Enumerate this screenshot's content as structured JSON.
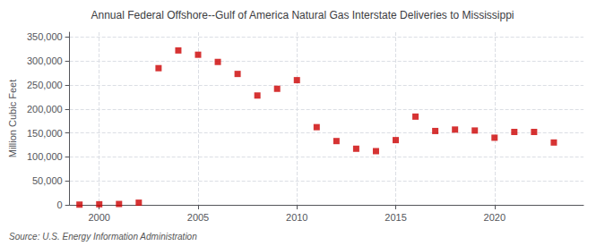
{
  "chart_data": {
    "type": "scatter",
    "title": "Annual Federal Offshore--Gulf of America Natural Gas Interstate Deliveries to Mississippi",
    "ylabel": "Million Cubic Feet",
    "source": "Source: U.S. Energy Information Administration",
    "x": [
      1999,
      2000,
      2001,
      2002,
      2003,
      2004,
      2005,
      2006,
      2007,
      2008,
      2009,
      2010,
      2011,
      2012,
      2013,
      2014,
      2015,
      2016,
      2017,
      2018,
      2019,
      2020,
      2021,
      2022,
      2023
    ],
    "values": [
      500,
      1200,
      1800,
      4500,
      285000,
      322000,
      313000,
      298000,
      273000,
      228000,
      242000,
      260000,
      162000,
      133000,
      117000,
      112000,
      135000,
      184000,
      154000,
      157000,
      155000,
      140000,
      152000,
      152000,
      130000
    ],
    "color": "#cc0000",
    "marker": "square",
    "xlim": [
      1998.5,
      2024.5
    ],
    "xticks": [
      2000,
      2005,
      2010,
      2015,
      2020
    ],
    "ylim": [
      0,
      360000
    ],
    "yticks": [
      0,
      {
        "value": 50000,
        "label": "50,000"
      },
      {
        "value": 100000,
        "label": "100,000"
      },
      {
        "value": 150000,
        "label": "150,000"
      },
      {
        "value": 200000,
        "label": "200,000"
      },
      {
        "value": 250000,
        "label": "250,000"
      },
      {
        "value": 300000,
        "label": "300,000"
      },
      {
        "value": 350000,
        "label": "350,000"
      }
    ],
    "grid": true
  }
}
